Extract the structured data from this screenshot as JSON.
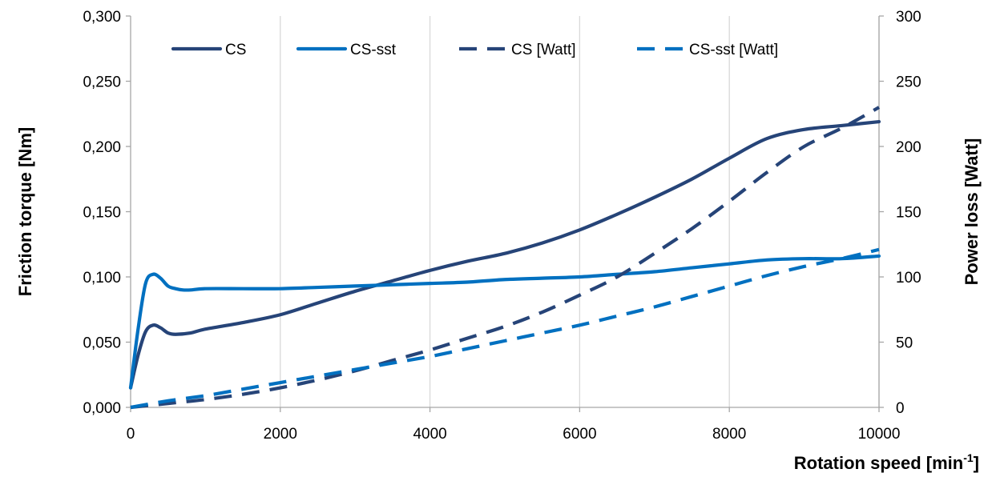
{
  "chart_data": {
    "type": "line",
    "xlabel": "Rotation speed [min",
    "xlabel_sup": "-1",
    "xlabel_end": "]",
    "ylabel_left": "Friction torque [Nm]",
    "ylabel_right": "Power loss [Watt]",
    "xlim": [
      0,
      10000
    ],
    "ylim_left": [
      0,
      0.3
    ],
    "ylim_right": [
      0,
      300
    ],
    "x_ticks": [
      0,
      2000,
      4000,
      6000,
      8000,
      10000
    ],
    "x_tick_labels": [
      "0",
      "2000",
      "4000",
      "6000",
      "8000",
      "10000"
    ],
    "y_left_ticks": [
      0,
      0.05,
      0.1,
      0.15,
      0.2,
      0.25,
      0.3
    ],
    "y_left_tick_labels": [
      "0,000",
      "0,050",
      "0,100",
      "0,150",
      "0,200",
      "0,250",
      "0,300"
    ],
    "y_right_ticks": [
      0,
      50,
      100,
      150,
      200,
      250,
      300
    ],
    "y_right_tick_labels": [
      "0",
      "50",
      "100",
      "150",
      "200",
      "250",
      "300"
    ],
    "grid": "vertical",
    "legend_position": "top",
    "series": [
      {
        "name": "CS",
        "axis": "left",
        "style": "solid",
        "color": "#264478",
        "x": [
          0,
          100,
          200,
          300,
          400,
          500,
          600,
          800,
          1000,
          1500,
          2000,
          2500,
          3000,
          3500,
          4000,
          4500,
          5000,
          5500,
          6000,
          6500,
          7000,
          7500,
          8000,
          8500,
          9000,
          9500,
          10000
        ],
        "values": [
          0.015,
          0.04,
          0.058,
          0.063,
          0.061,
          0.057,
          0.056,
          0.057,
          0.06,
          0.065,
          0.071,
          0.08,
          0.089,
          0.097,
          0.105,
          0.112,
          0.118,
          0.126,
          0.136,
          0.148,
          0.161,
          0.175,
          0.191,
          0.206,
          0.213,
          0.216,
          0.219
        ]
      },
      {
        "name": "CS-sst",
        "axis": "left",
        "style": "solid",
        "color": "#0070C0",
        "x": [
          0,
          100,
          200,
          300,
          400,
          500,
          600,
          700,
          800,
          1000,
          1500,
          2000,
          2500,
          3000,
          3500,
          4000,
          4500,
          5000,
          5500,
          6000,
          6500,
          7000,
          7500,
          8000,
          8500,
          9000,
          9500,
          10000
        ],
        "values": [
          0.015,
          0.06,
          0.095,
          0.102,
          0.099,
          0.093,
          0.091,
          0.09,
          0.09,
          0.091,
          0.091,
          0.091,
          0.092,
          0.093,
          0.094,
          0.095,
          0.096,
          0.098,
          0.099,
          0.1,
          0.102,
          0.104,
          0.107,
          0.11,
          0.113,
          0.114,
          0.114,
          0.116
        ]
      },
      {
        "name": "CS [Watt]",
        "axis": "right",
        "style": "dashed",
        "color": "#264478",
        "x": [
          0,
          500,
          1000,
          1500,
          2000,
          2500,
          3000,
          3500,
          4000,
          4500,
          5000,
          5500,
          6000,
          6500,
          7000,
          7500,
          8000,
          8500,
          9000,
          9500,
          10000
        ],
        "values": [
          0,
          3,
          6,
          10,
          15,
          21,
          28,
          36,
          44,
          53,
          62,
          73,
          86,
          100,
          118,
          137,
          158,
          180,
          200,
          214,
          230
        ]
      },
      {
        "name": "CS-sst [Watt]",
        "axis": "right",
        "style": "dashed",
        "color": "#0070C0",
        "x": [
          0,
          500,
          1000,
          1500,
          2000,
          2500,
          3000,
          3500,
          4000,
          4500,
          5000,
          5500,
          6000,
          6500,
          7000,
          7500,
          8000,
          8500,
          9000,
          9500,
          10000
        ],
        "values": [
          0,
          5,
          9,
          14,
          19,
          24,
          29,
          34,
          39,
          45,
          51,
          57,
          63,
          70,
          77,
          85,
          93,
          101,
          108,
          114,
          121
        ]
      }
    ]
  }
}
